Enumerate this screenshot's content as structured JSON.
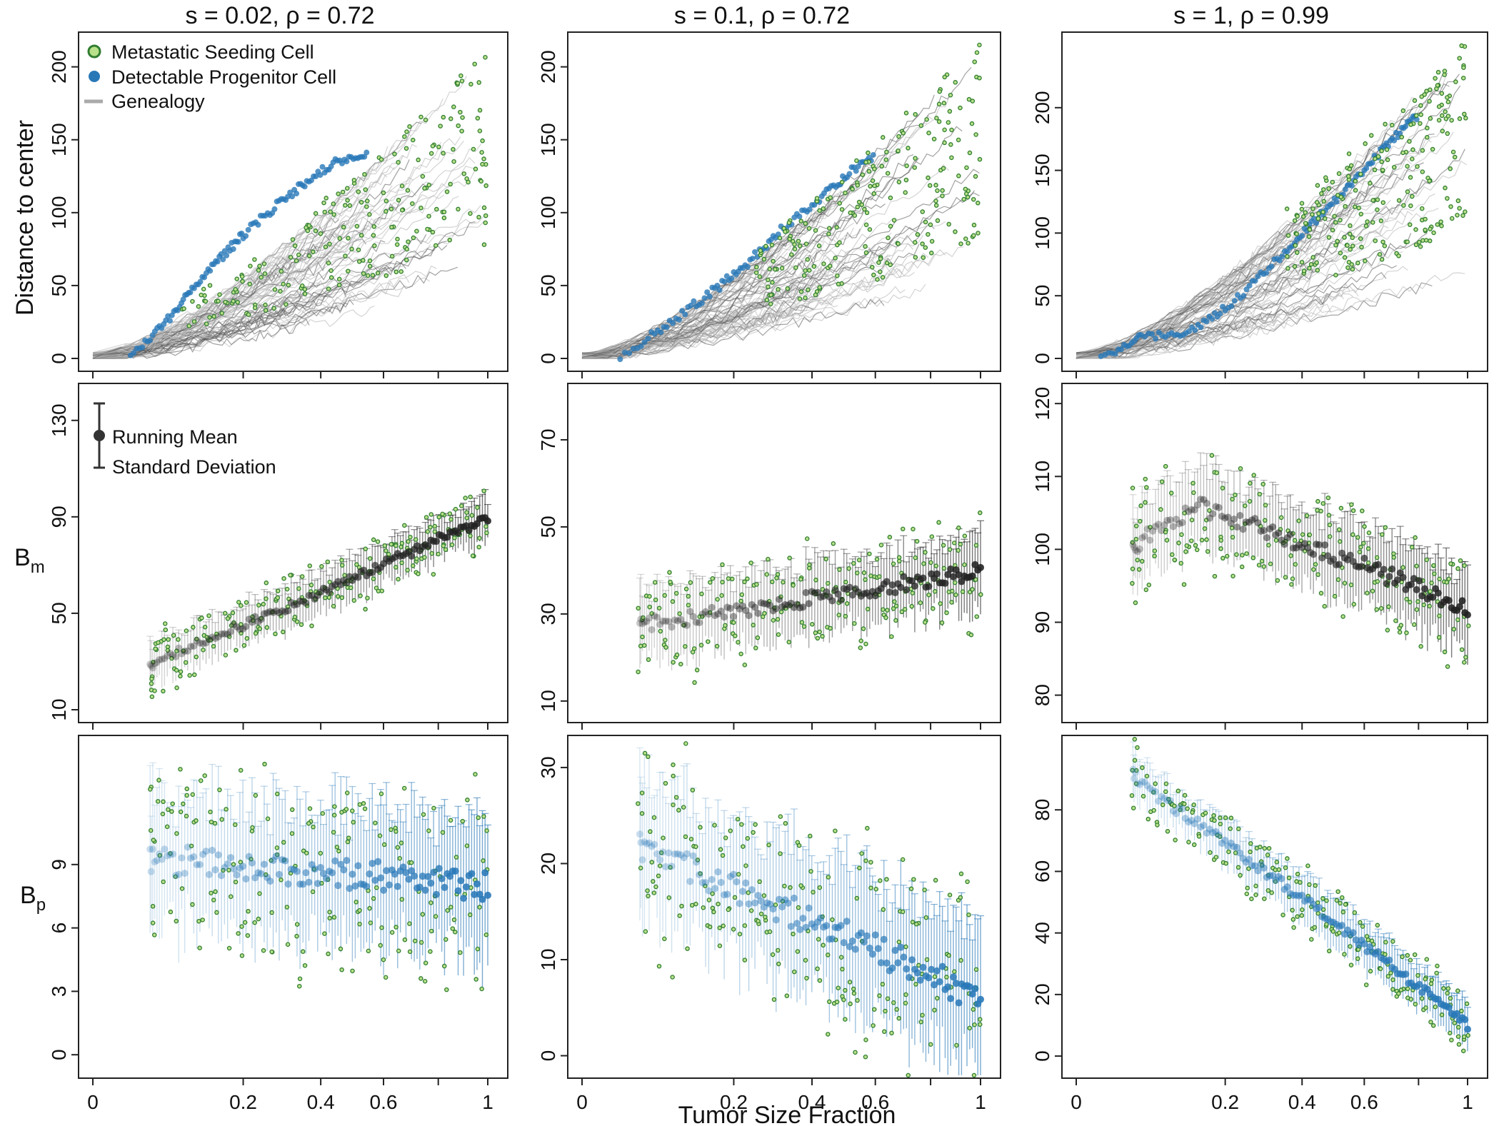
{
  "figure": {
    "xlabel": "Tumor Size Fraction",
    "x_tick_labels": [
      "0",
      "0.2",
      "0.4",
      "0.6",
      "1"
    ],
    "x_tick_values": [
      0,
      0.2,
      0.4,
      0.6,
      1
    ],
    "row_labels": {
      "row1": "Distance to center",
      "row2_main": "B",
      "row2_sub": "m",
      "row3_main": "B",
      "row3_sub": "p"
    },
    "legend_top": {
      "seeding": "Metastatic Seeding Cell",
      "progenitor": "Detectable Progenitor Cell",
      "genealogy": "Genealogy"
    },
    "legend_mid": {
      "mean": "Running Mean",
      "sd": "Standard Deviation"
    }
  },
  "colors": {
    "seeding_fill": "#b9e08a",
    "seeding_edge": "#2f7d2f",
    "progenitor": "#2878b8",
    "genealogy": "#9a9a9a",
    "mean_black": "#222222"
  },
  "chart_data": [
    {
      "panel": "s = 0.02, ρ = 0.72 / distance",
      "type": "scatter",
      "title": "s = 0.02, ρ = 0.72",
      "ylabel": "Distance to center",
      "ylim": [
        0,
        215
      ],
      "yticks": [
        0,
        50,
        100,
        150,
        200
      ],
      "progenitor_path": [
        [
          0.02,
          2
        ],
        [
          0.06,
          25
        ],
        [
          0.1,
          48
        ],
        [
          0.15,
          68
        ],
        [
          0.2,
          85
        ],
        [
          0.28,
          105
        ],
        [
          0.36,
          122
        ],
        [
          0.45,
          135
        ],
        [
          0.55,
          142
        ]
      ],
      "seeding_range": {
        "x": [
          0.08,
          1.0
        ],
        "y": [
          10,
          205
        ]
      }
    },
    {
      "panel": "s = 0.1, ρ = 0.72 / distance",
      "type": "scatter",
      "title": "s = 0.1, ρ = 0.72",
      "ylabel": "",
      "ylim": [
        0,
        215
      ],
      "yticks": [
        0,
        50,
        100,
        150,
        200
      ],
      "progenitor_path": [
        [
          0.02,
          2
        ],
        [
          0.08,
          25
        ],
        [
          0.15,
          45
        ],
        [
          0.22,
          62
        ],
        [
          0.3,
          85
        ],
        [
          0.4,
          105
        ],
        [
          0.5,
          125
        ],
        [
          0.6,
          140
        ]
      ],
      "seeding_range": {
        "x": [
          0.25,
          1.0
        ],
        "y": [
          5,
          210
        ]
      }
    },
    {
      "panel": "s = 1, ρ = 0.99 / distance",
      "type": "scatter",
      "title": "s = 1, ρ = 0.99",
      "ylabel": "",
      "ylim": [
        0,
        250
      ],
      "yticks": [
        0,
        50,
        100,
        150,
        200
      ],
      "progenitor_path": [
        [
          0.01,
          1
        ],
        [
          0.05,
          18
        ],
        [
          0.12,
          20
        ],
        [
          0.2,
          40
        ],
        [
          0.3,
          70
        ],
        [
          0.4,
          100
        ],
        [
          0.5,
          125
        ],
        [
          0.6,
          150
        ],
        [
          0.7,
          175
        ],
        [
          0.8,
          195
        ]
      ],
      "seeding_range": {
        "x": [
          0.35,
          1.0
        ],
        "y": [
          20,
          245
        ]
      }
    },
    {
      "panel": "s = 0.02, ρ = 0.72 / Bm",
      "type": "scatter",
      "ylabel": "Bm",
      "ylim": [
        10,
        140
      ],
      "yticks": [
        10,
        50,
        90,
        130
      ],
      "mean_start": 28,
      "mean_end": 90,
      "sd_half_width": 10
    },
    {
      "panel": "s = 0.1, ρ = 0.72 / Bm",
      "type": "scatter",
      "ylabel": "",
      "ylim": [
        8,
        80
      ],
      "yticks": [
        10,
        30,
        50,
        70
      ],
      "mean_start": 27,
      "mean_end": 40,
      "sd_half_width": 9
    },
    {
      "panel": "s = 1, ρ = 0.99 / Bm",
      "type": "scatter",
      "ylabel": "",
      "ylim": [
        78,
        121
      ],
      "yticks": [
        80,
        90,
        100,
        110,
        120
      ],
      "mean_start": 100,
      "mean_peak": 106,
      "mean_end": 92,
      "sd_half_width": 6
    },
    {
      "panel": "s = 0.02, ρ = 0.72 / Bp",
      "type": "scatter",
      "ylabel": "Bp",
      "ylim": [
        -0.5,
        14.5
      ],
      "yticks": [
        0,
        3,
        6,
        9
      ],
      "mean_start": 9.3,
      "mean_end": 8,
      "sd_half_width": 3.5
    },
    {
      "panel": "s = 0.1, ρ = 0.72 / Bp",
      "type": "scatter",
      "ylabel": "",
      "ylim": [
        -1,
        32
      ],
      "yticks": [
        0,
        10,
        20,
        30
      ],
      "mean_start": 22,
      "mean_end": 6,
      "sd_half_width": 8
    },
    {
      "panel": "s = 1, ρ = 0.99 / Bp",
      "type": "scatter",
      "ylabel": "",
      "ylim": [
        -3,
        100
      ],
      "yticks": [
        0,
        20,
        40,
        60,
        80
      ],
      "mean_start": 92,
      "mean_end": 10,
      "sd_half_width": 8
    }
  ]
}
